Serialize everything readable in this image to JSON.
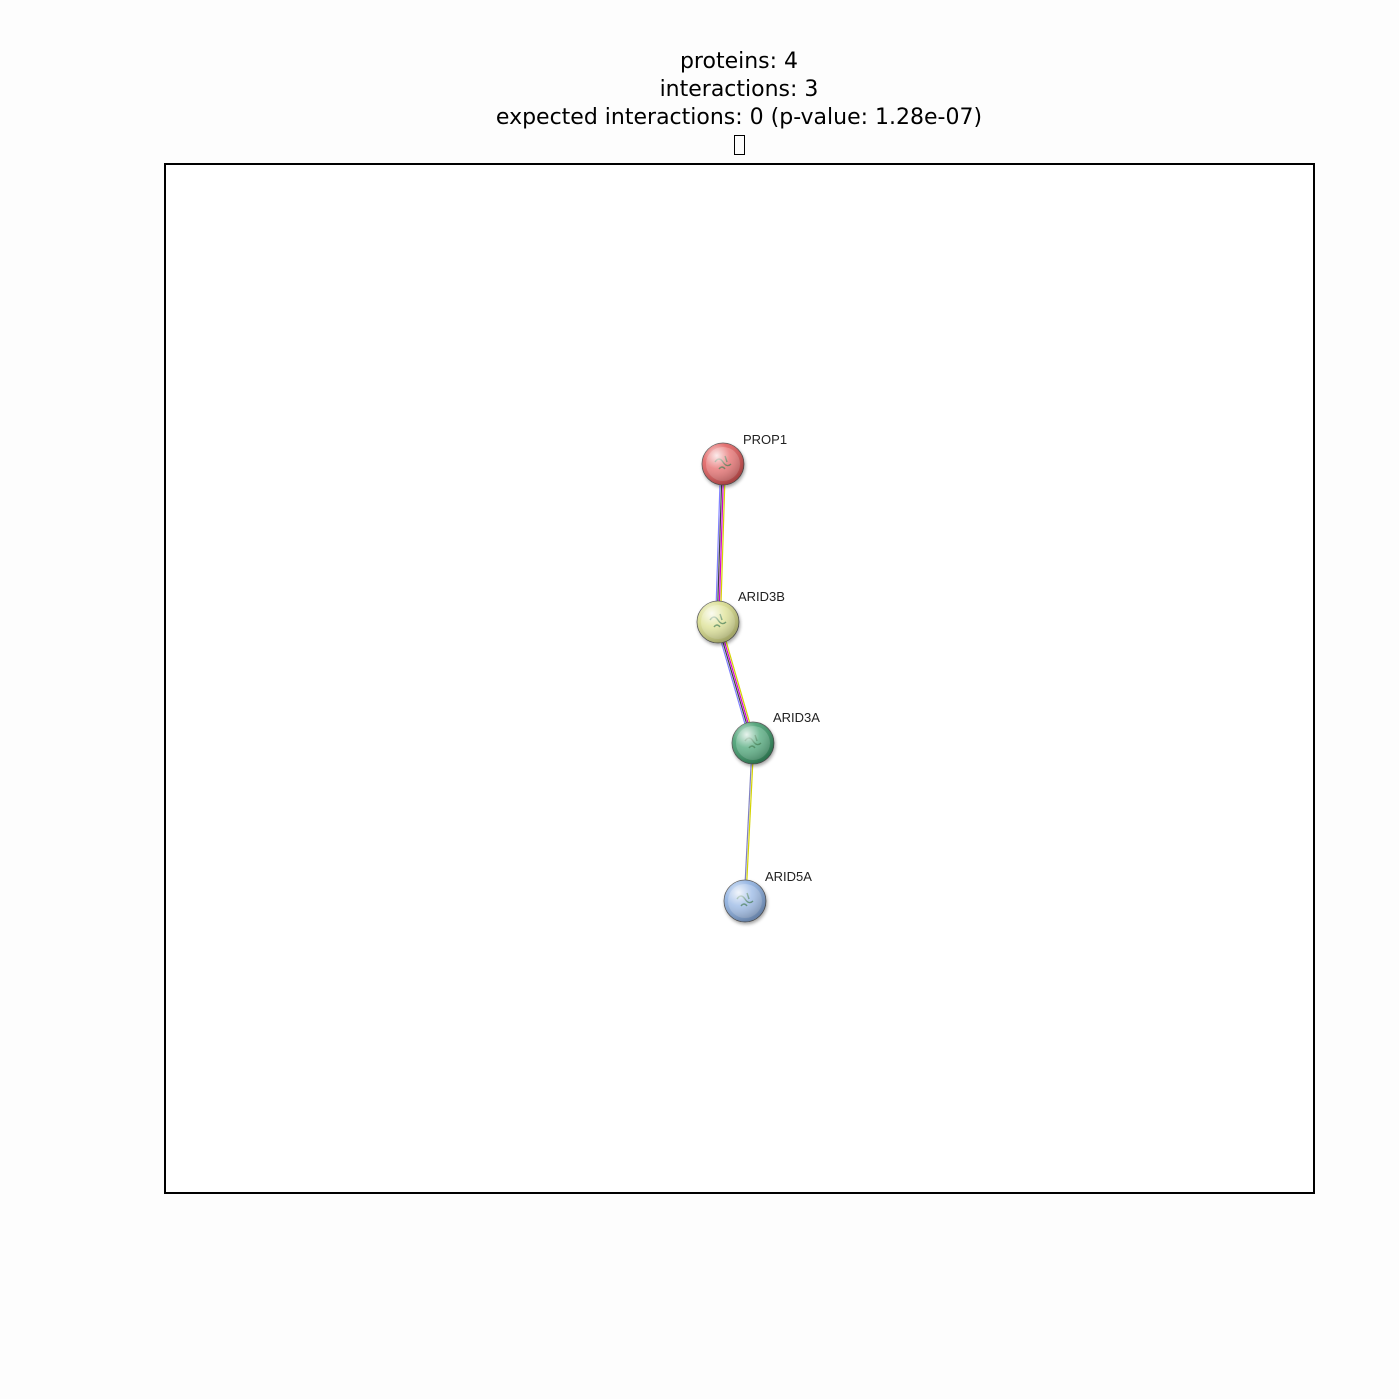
{
  "header": {
    "proteins_line": "proteins: 4",
    "interactions_line": "interactions: 3",
    "expected_line": "expected interactions: 0 (p-value: 1.28e-07)"
  },
  "network": {
    "nodes": [
      {
        "id": "PROP1",
        "label": "PROP1",
        "color": "#e05a5a",
        "highlight": "#f7b9b9"
      },
      {
        "id": "ARID3B",
        "label": "ARID3B",
        "color": "#d8dc8a",
        "highlight": "#f4f6c9"
      },
      {
        "id": "ARID3A",
        "label": "ARID3A",
        "color": "#3e9a6a",
        "highlight": "#a5dcbf"
      },
      {
        "id": "ARID5A",
        "label": "ARID5A",
        "color": "#8aaee0",
        "highlight": "#d3e2f7"
      }
    ],
    "edges": [
      {
        "source": "PROP1",
        "target": "ARID3B",
        "evidence_colors": [
          "#d4d400",
          "#d000d0",
          "#404040",
          "#8080ff"
        ]
      },
      {
        "source": "ARID3B",
        "target": "ARID3A",
        "evidence_colors": [
          "#d4d400",
          "#d000d0",
          "#404040",
          "#8080ff"
        ]
      },
      {
        "source": "ARID3A",
        "target": "ARID5A",
        "evidence_colors": [
          "#d4d400",
          "#8080c0"
        ]
      }
    ]
  }
}
